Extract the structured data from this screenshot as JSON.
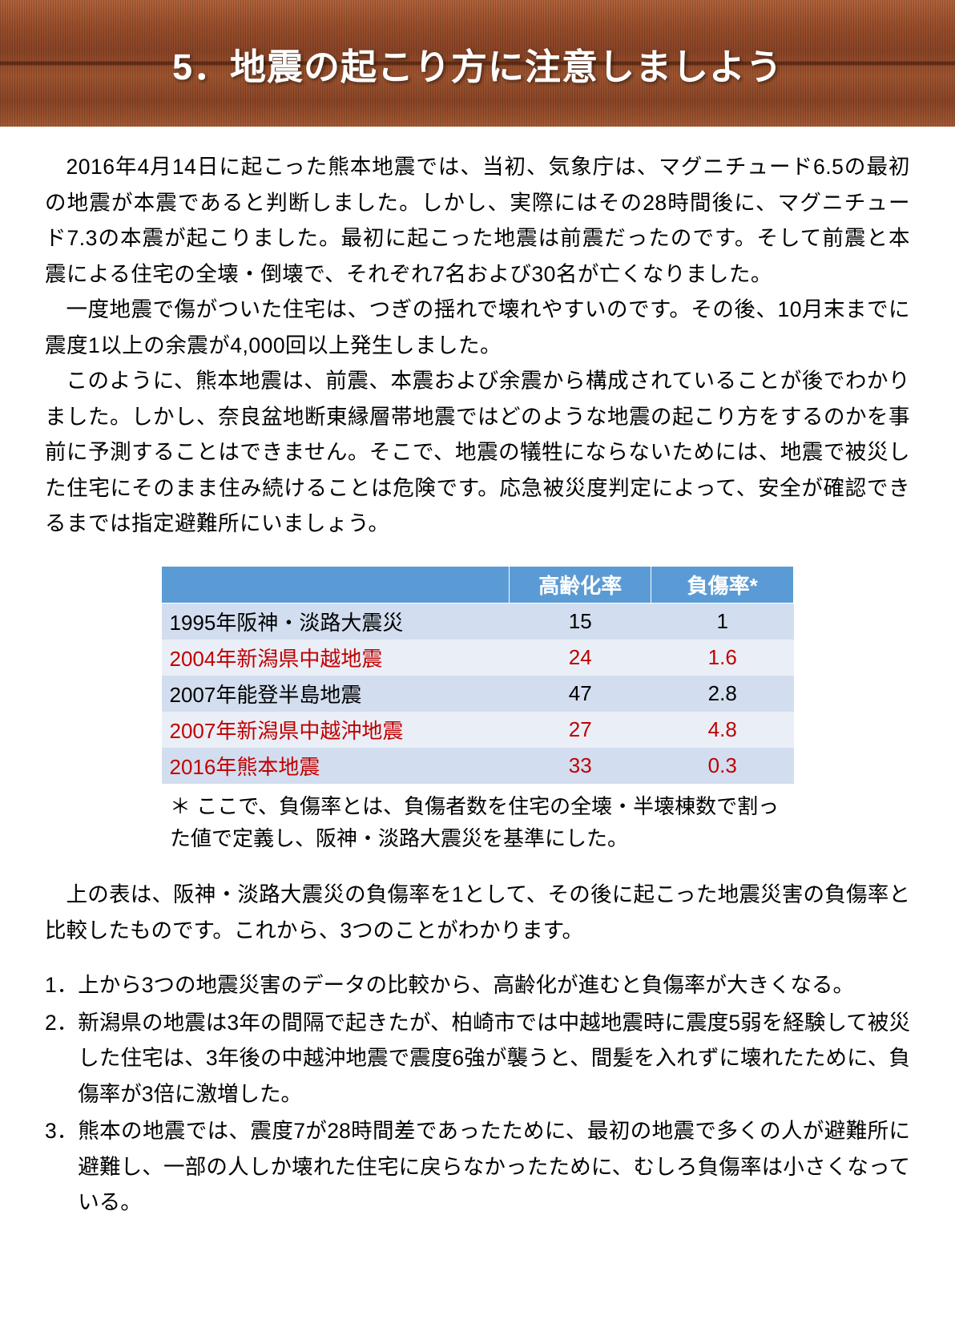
{
  "header": {
    "title": "5．地震の起こり方に注意しましよう"
  },
  "paragraphs": {
    "p1": "2016年4月14日に起こった熊本地震では、当初、気象庁は、マグニチュード6.5の最初の地震が本震であると判断しました。しかし、実際にはその28時間後に、マグニチュード7.3の本震が起こりました。最初に起こった地震は前震だったのです。そして前震と本震による住宅の全壊・倒壊で、それぞれ7名および30名が亡くなりました。",
    "p2": "一度地震で傷がついた住宅は、つぎの揺れで壊れやすいのです。その後、10月末までに震度1以上の余震が4,000回以上発生しました。",
    "p3": "このように、熊本地震は、前震、本震および余震から構成されていることが後でわかりました。しかし、奈良盆地断東縁層帯地震ではどのような地震の起こり方をするのかを事前に予測することはできません。そこで、地震の犠牲にならないためには、地震で被災した住宅にそのまま住み続けることは危険です。応急被災度判定によって、安全が確認できるまでは指定避難所にいましょう。"
  },
  "table": {
    "type": "table",
    "header_bg": "#5b9bd5",
    "header_text_color": "#ffffff",
    "band_a_bg": "#d2deef",
    "band_b_bg": "#eaeff7",
    "red_text": "#c00000",
    "columns": {
      "blank": "",
      "col1": "高齢化率",
      "col2": "負傷率*"
    },
    "rows": [
      {
        "name": "1995年阪神・淡路大震災",
        "v1": "15",
        "v2": "1",
        "color": "black",
        "band": "a"
      },
      {
        "name": "2004年新潟県中越地震",
        "v1": "24",
        "v2": "1.6",
        "color": "red",
        "band": "b"
      },
      {
        "name": "2007年能登半島地震",
        "v1": "47",
        "v2": "2.8",
        "color": "black",
        "band": "a"
      },
      {
        "name": "2007年新潟県中越沖地震",
        "v1": "27",
        "v2": "4.8",
        "color": "red",
        "band": "b"
      },
      {
        "name": "2016年熊本地震",
        "v1": "33",
        "v2": "0.3",
        "color": "red",
        "band": "a"
      }
    ],
    "footnote": "＊ ここで、負傷率とは、負傷者数を住宅の全壊・半壊棟数で割った値で定義し、阪神・淡路大震災を基準にした。"
  },
  "after_table": {
    "p": "上の表は、阪神・淡路大震災の負傷率を1として、その後に起こった地震災害の負傷率と比較したものです。これから、3つのことがわかります。"
  },
  "list": {
    "items": [
      {
        "num": "1．",
        "text": "上から3つの地震災害のデータの比較から、高齢化が進むと負傷率が大きくなる。"
      },
      {
        "num": "2．",
        "text": "新潟県の地震は3年の間隔で起きたが、柏崎市では中越地震時に震度5弱を経験して被災した住宅は、3年後の中越沖地震で震度6強が襲うと、間髪を入れずに壊れたために、負傷率が3倍に激増した。"
      },
      {
        "num": "3．",
        "text": "熊本の地震では、震度7が28時間差であったために、最初の地震で多くの人が避難所に避難し、一部の人しか壊れた住宅に戻らなかったために、むしろ負傷率は小さくなっている。"
      }
    ]
  }
}
